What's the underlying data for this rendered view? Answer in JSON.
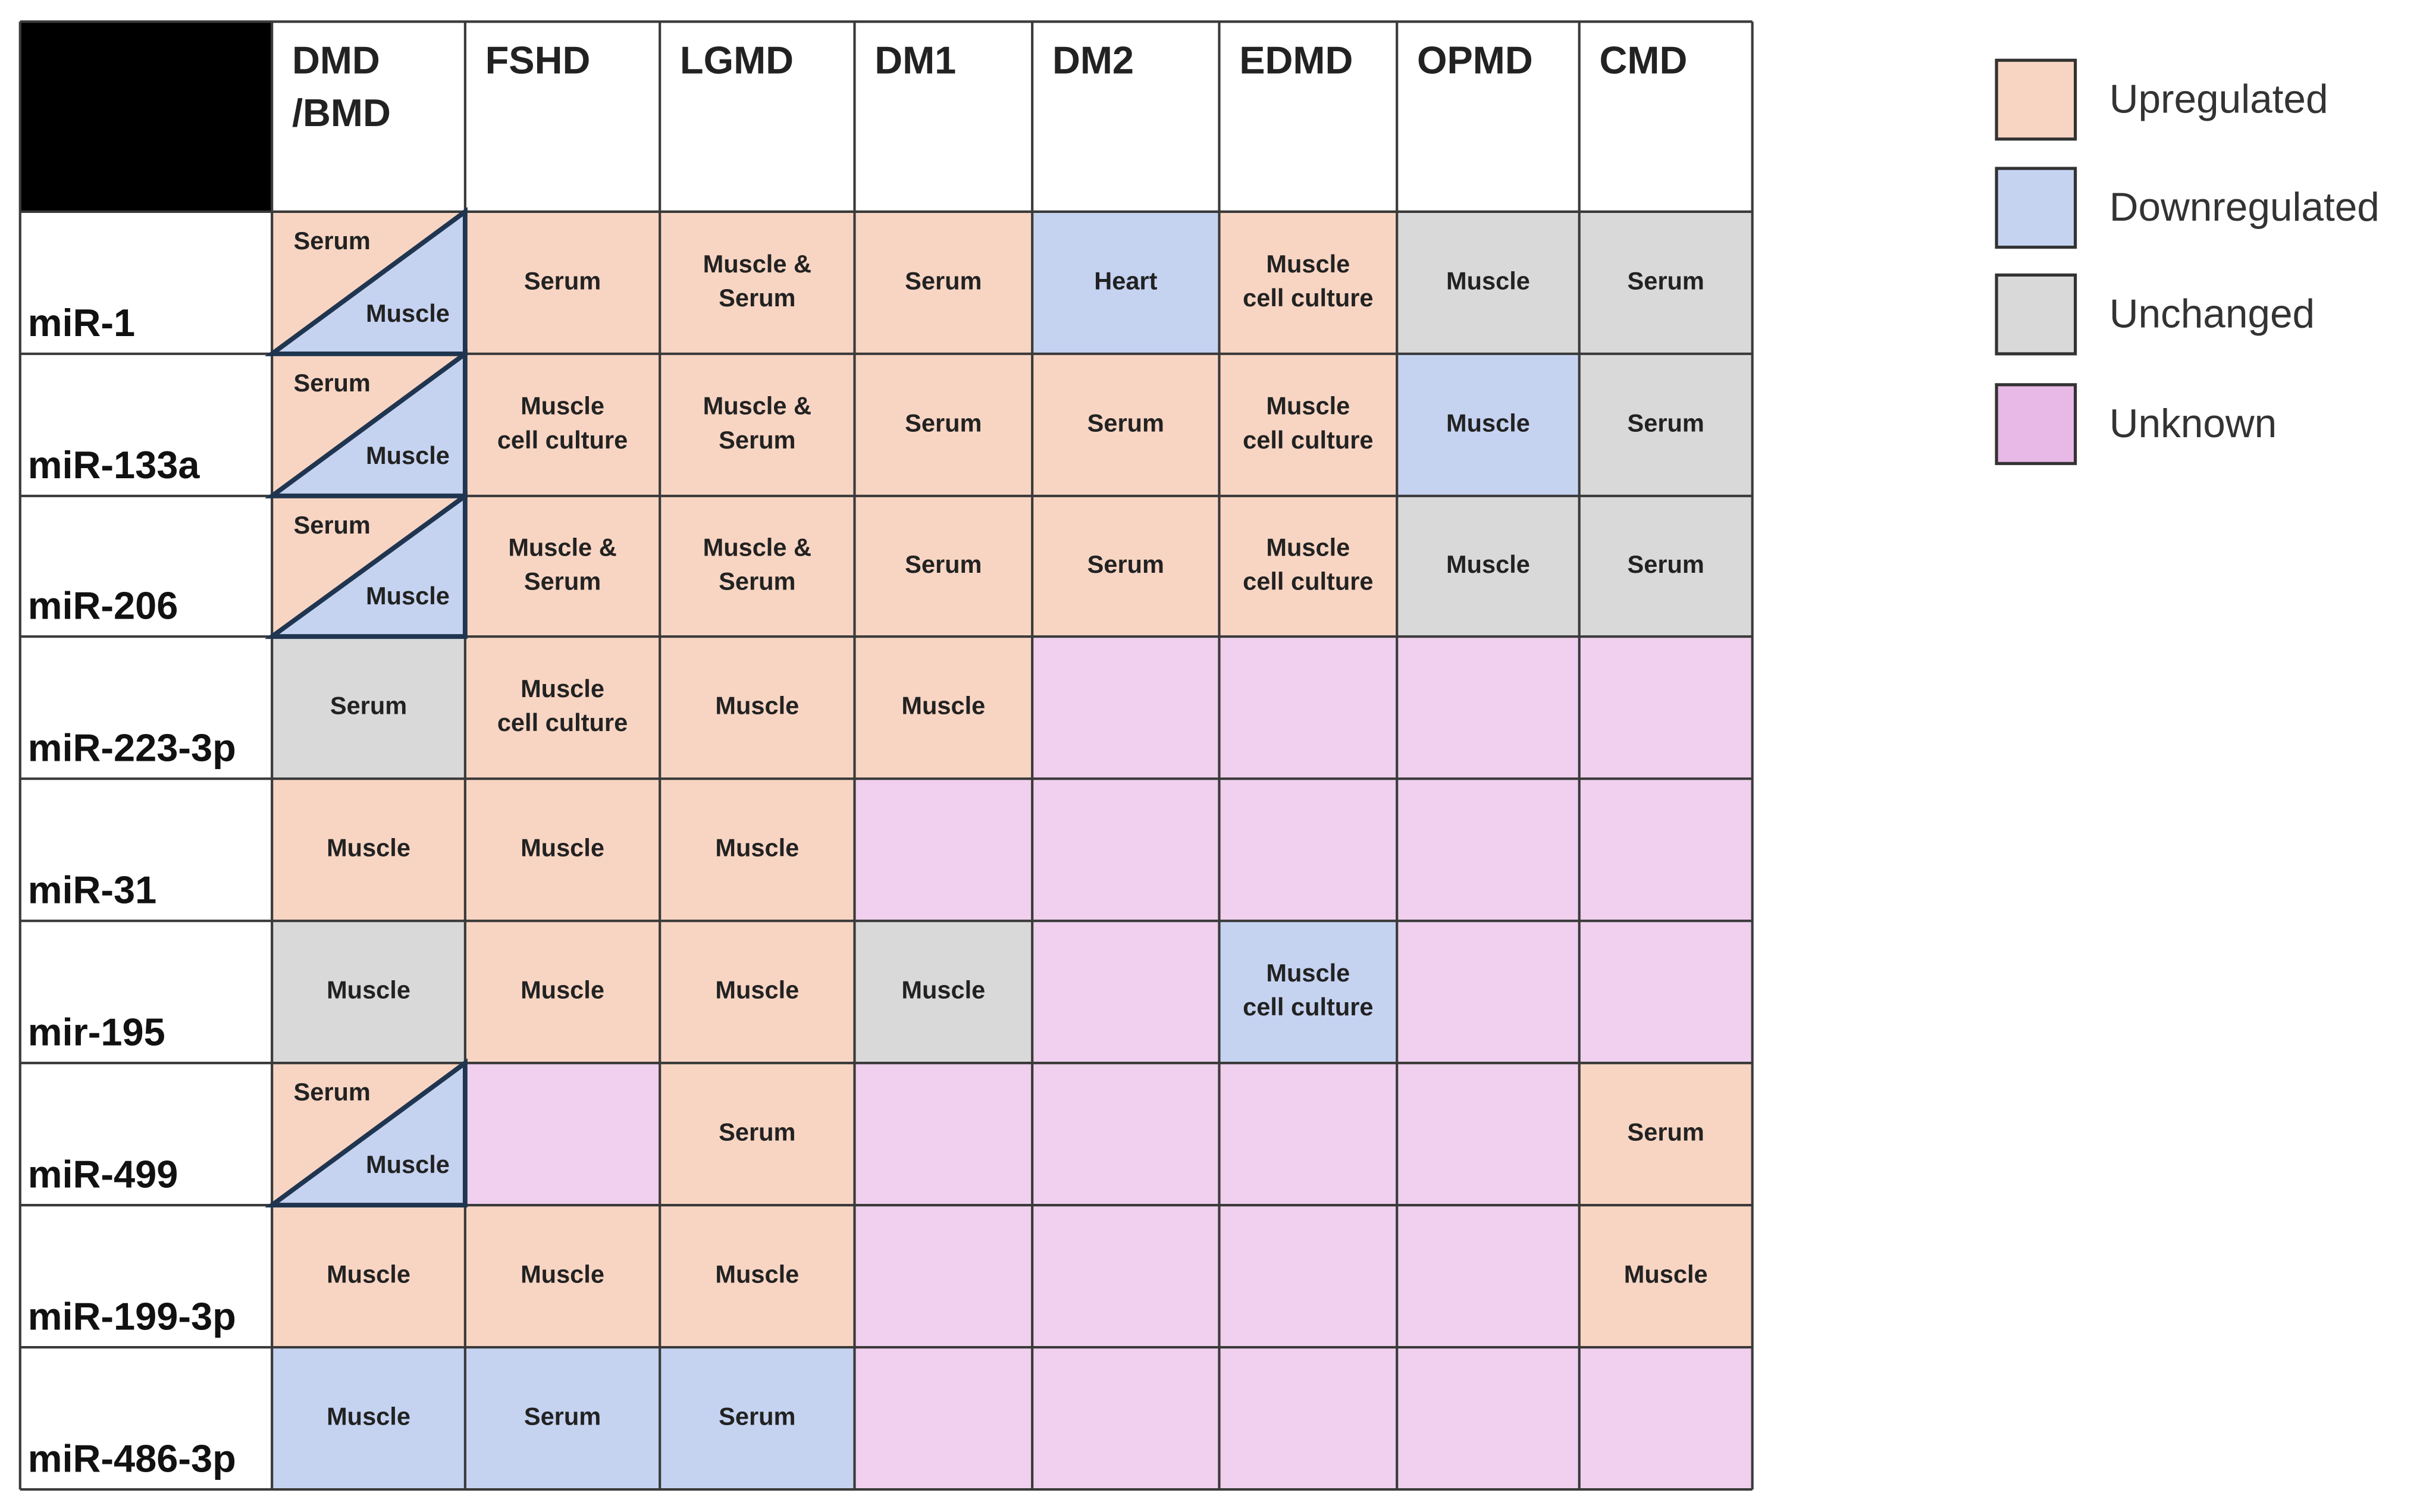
{
  "table": {
    "columns": [
      [
        "DMD",
        "/BMD"
      ],
      [
        "FSHD"
      ],
      [
        "LGMD"
      ],
      [
        "DM1"
      ],
      [
        "DM2"
      ],
      [
        "EDMD"
      ],
      [
        "OPMD"
      ],
      [
        "CMD"
      ]
    ],
    "rows": [
      {
        "label": "miR-1",
        "cells": [
          {
            "split": [
              {
                "color": "#f8d5c3",
                "lines": [
                  "Serum"
                ]
              },
              {
                "color": "#c5d3f1",
                "lines": [
                  "Muscle"
                ]
              }
            ]
          },
          {
            "color": "#f8d5c3",
            "lines": [
              "Serum"
            ]
          },
          {
            "color": "#f8d5c3",
            "lines": [
              "Muscle &",
              "Serum"
            ]
          },
          {
            "color": "#f8d5c3",
            "lines": [
              "Serum"
            ]
          },
          {
            "color": "#c5d3f1",
            "lines": [
              "Heart"
            ]
          },
          {
            "color": "#f8d5c3",
            "lines": [
              "Muscle",
              "cell culture"
            ]
          },
          {
            "color": "#d9d9d9",
            "lines": [
              "Muscle"
            ]
          },
          {
            "color": "#d9d9d9",
            "lines": [
              "Serum"
            ]
          }
        ]
      },
      {
        "label": "miR-133a",
        "cells": [
          {
            "split": [
              {
                "color": "#f8d5c3",
                "lines": [
                  "Serum"
                ]
              },
              {
                "color": "#c5d3f1",
                "lines": [
                  "Muscle"
                ]
              }
            ]
          },
          {
            "color": "#f8d5c3",
            "lines": [
              "Muscle",
              "cell culture"
            ]
          },
          {
            "color": "#f8d5c3",
            "lines": [
              "Muscle &",
              "Serum"
            ]
          },
          {
            "color": "#f8d5c3",
            "lines": [
              "Serum"
            ]
          },
          {
            "color": "#f8d5c3",
            "lines": [
              "Serum"
            ]
          },
          {
            "color": "#f8d5c3",
            "lines": [
              "Muscle",
              "cell culture"
            ]
          },
          {
            "color": "#c5d3f1",
            "lines": [
              "Muscle"
            ]
          },
          {
            "color": "#d9d9d9",
            "lines": [
              "Serum"
            ]
          }
        ]
      },
      {
        "label": "miR-206",
        "cells": [
          {
            "split": [
              {
                "color": "#f8d5c3",
                "lines": [
                  "Serum"
                ]
              },
              {
                "color": "#c5d3f1",
                "lines": [
                  "Muscle"
                ]
              }
            ]
          },
          {
            "color": "#f8d5c3",
            "lines": [
              "Muscle &",
              "Serum"
            ]
          },
          {
            "color": "#f8d5c3",
            "lines": [
              "Muscle &",
              "Serum"
            ]
          },
          {
            "color": "#f8d5c3",
            "lines": [
              "Serum"
            ]
          },
          {
            "color": "#f8d5c3",
            "lines": [
              "Serum"
            ]
          },
          {
            "color": "#f8d5c3",
            "lines": [
              "Muscle",
              "cell culture"
            ]
          },
          {
            "color": "#d9d9d9",
            "lines": [
              "Muscle"
            ]
          },
          {
            "color": "#d9d9d9",
            "lines": [
              "Serum"
            ]
          }
        ]
      },
      {
        "label": "miR-223-3p",
        "cells": [
          {
            "color": "#d9d9d9",
            "lines": [
              "Serum"
            ]
          },
          {
            "color": "#f8d5c3",
            "lines": [
              "Muscle",
              "cell culture"
            ]
          },
          {
            "color": "#f8d5c3",
            "lines": [
              "Muscle"
            ]
          },
          {
            "color": "#f8d5c3",
            "lines": [
              "Muscle"
            ]
          },
          {
            "color": "#f0d0ee",
            "lines": []
          },
          {
            "color": "#f0d0ee",
            "lines": []
          },
          {
            "color": "#f0d0ee",
            "lines": []
          },
          {
            "color": "#f0d0ee",
            "lines": []
          }
        ]
      },
      {
        "label": "miR-31",
        "cells": [
          {
            "color": "#f8d5c3",
            "lines": [
              "Muscle"
            ]
          },
          {
            "color": "#f8d5c3",
            "lines": [
              "Muscle"
            ]
          },
          {
            "color": "#f8d5c3",
            "lines": [
              "Muscle"
            ]
          },
          {
            "color": "#f0d0ee",
            "lines": []
          },
          {
            "color": "#f0d0ee",
            "lines": []
          },
          {
            "color": "#f0d0ee",
            "lines": []
          },
          {
            "color": "#f0d0ee",
            "lines": []
          },
          {
            "color": "#f0d0ee",
            "lines": []
          }
        ]
      },
      {
        "label": "mir-195",
        "cells": [
          {
            "color": "#d9d9d9",
            "lines": [
              "Muscle"
            ]
          },
          {
            "color": "#f8d5c3",
            "lines": [
              "Muscle"
            ]
          },
          {
            "color": "#f8d5c3",
            "lines": [
              "Muscle"
            ]
          },
          {
            "color": "#d9d9d9",
            "lines": [
              "Muscle"
            ]
          },
          {
            "color": "#f0d0ee",
            "lines": []
          },
          {
            "color": "#c5d3f1",
            "lines": [
              "Muscle",
              "cell culture"
            ]
          },
          {
            "color": "#f0d0ee",
            "lines": []
          },
          {
            "color": "#f0d0ee",
            "lines": []
          }
        ]
      },
      {
        "label": "miR-499",
        "cells": [
          {
            "split": [
              {
                "color": "#f8d5c3",
                "lines": [
                  "Serum"
                ]
              },
              {
                "color": "#c5d3f1",
                "lines": [
                  "Muscle"
                ]
              }
            ]
          },
          {
            "color": "#f0d0ee",
            "lines": []
          },
          {
            "color": "#f8d5c3",
            "lines": [
              "Serum"
            ]
          },
          {
            "color": "#f0d0ee",
            "lines": []
          },
          {
            "color": "#f0d0ee",
            "lines": []
          },
          {
            "color": "#f0d0ee",
            "lines": []
          },
          {
            "color": "#f0d0ee",
            "lines": []
          },
          {
            "color": "#f8d5c3",
            "lines": [
              "Serum"
            ]
          }
        ]
      },
      {
        "label": "miR-199-3p",
        "cells": [
          {
            "color": "#f8d5c3",
            "lines": [
              "Muscle"
            ]
          },
          {
            "color": "#f8d5c3",
            "lines": [
              "Muscle"
            ]
          },
          {
            "color": "#f8d5c3",
            "lines": [
              "Muscle"
            ]
          },
          {
            "color": "#f0d0ee",
            "lines": []
          },
          {
            "color": "#f0d0ee",
            "lines": []
          },
          {
            "color": "#f0d0ee",
            "lines": []
          },
          {
            "color": "#f0d0ee",
            "lines": []
          },
          {
            "color": "#f8d5c3",
            "lines": [
              "Muscle"
            ]
          }
        ]
      },
      {
        "label": "miR-486-3p",
        "cells": [
          {
            "color": "#c5d3f1",
            "lines": [
              "Muscle"
            ]
          },
          {
            "color": "#c5d3f1",
            "lines": [
              "Serum"
            ]
          },
          {
            "color": "#c5d3f1",
            "lines": [
              "Serum"
            ]
          },
          {
            "color": "#f0d0ee",
            "lines": []
          },
          {
            "color": "#f0d0ee",
            "lines": []
          },
          {
            "color": "#f0d0ee",
            "lines": []
          },
          {
            "color": "#f0d0ee",
            "lines": []
          },
          {
            "color": "#f0d0ee",
            "lines": []
          }
        ]
      }
    ]
  },
  "legend": [
    {
      "label": "Upregulated",
      "color": "#f8d5c3"
    },
    {
      "label": "Downregulated",
      "color": "#c5d3f1"
    },
    {
      "label": "Unchanged",
      "color": "#d9d9d9"
    },
    {
      "label": "Unknown",
      "color": "#e8b8e6"
    }
  ]
}
